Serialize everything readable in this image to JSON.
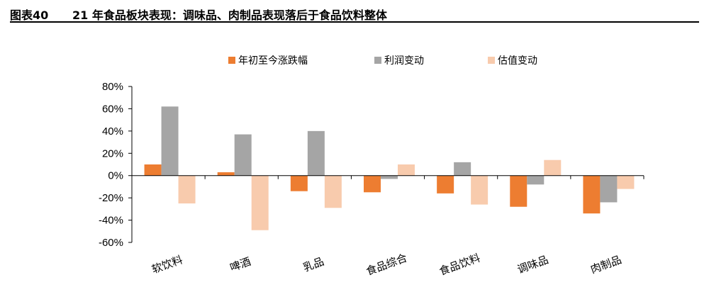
{
  "figure": {
    "number": "图表40",
    "title": "21 年食品板块表现：调味品、肉制品表现落后于食品饮料整体"
  },
  "chart_data": {
    "type": "bar",
    "categories": [
      "软饮料",
      "啤酒",
      "乳品",
      "食品综合",
      "食品饮料",
      "调味品",
      "肉制品"
    ],
    "series": [
      {
        "name": "年初至今涨跌幅",
        "color": "#ED7D31",
        "values": [
          10,
          3,
          -14,
          -15,
          -16,
          -28,
          -34
        ]
      },
      {
        "name": "利润变动",
        "color": "#A5A5A5",
        "values": [
          62,
          37,
          40,
          -3,
          12,
          -8,
          -24
        ]
      },
      {
        "name": "估值变动",
        "color": "#F8CBAD",
        "values": [
          -25,
          -49,
          -29,
          10,
          -26,
          14,
          -12
        ]
      }
    ],
    "ylim": [
      -60,
      80
    ],
    "yticks": [
      -60,
      -40,
      -20,
      0,
      20,
      40,
      60,
      80
    ],
    "ytick_labels": [
      "-60%",
      "-40%",
      "-20%",
      "0%",
      "20%",
      "40%",
      "60%",
      "80%"
    ],
    "legend_position": "top-center",
    "grid": false
  }
}
